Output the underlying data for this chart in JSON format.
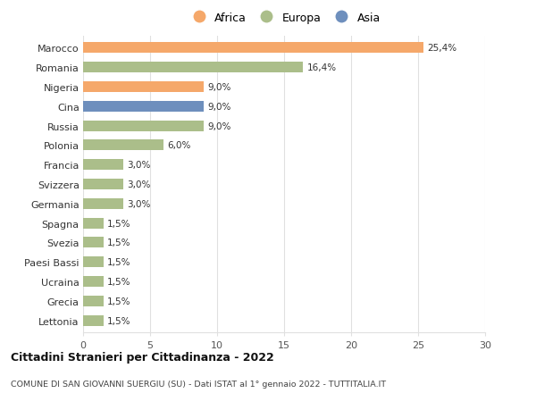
{
  "countries": [
    "Marocco",
    "Romania",
    "Nigeria",
    "Cina",
    "Russia",
    "Polonia",
    "Francia",
    "Svizzera",
    "Germania",
    "Spagna",
    "Svezia",
    "Paesi Bassi",
    "Ucraina",
    "Grecia",
    "Lettonia"
  ],
  "values": [
    25.4,
    16.4,
    9.0,
    9.0,
    9.0,
    6.0,
    3.0,
    3.0,
    3.0,
    1.5,
    1.5,
    1.5,
    1.5,
    1.5,
    1.5
  ],
  "continents": [
    "Africa",
    "Europa",
    "Africa",
    "Asia",
    "Europa",
    "Europa",
    "Europa",
    "Europa",
    "Europa",
    "Europa",
    "Europa",
    "Europa",
    "Europa",
    "Europa",
    "Europa"
  ],
  "colors": {
    "Africa": "#F5A86A",
    "Europa": "#ABBE8A",
    "Asia": "#6E8FBD"
  },
  "bar_alpha": 1.0,
  "xlim": [
    0,
    30
  ],
  "xticks": [
    0,
    5,
    10,
    15,
    20,
    25,
    30
  ],
  "title": "Cittadini Stranieri per Cittadinanza - 2022",
  "subtitle": "COMUNE DI SAN GIOVANNI SUERGIU (SU) - Dati ISTAT al 1° gennaio 2022 - TUTTITALIA.IT",
  "labels": [
    "25,4%",
    "16,4%",
    "9,0%",
    "9,0%",
    "9,0%",
    "6,0%",
    "3,0%",
    "3,0%",
    "3,0%",
    "1,5%",
    "1,5%",
    "1,5%",
    "1,5%",
    "1,5%",
    "1,5%"
  ],
  "bg_color": "#FFFFFF",
  "grid_color": "#E0E0E0"
}
